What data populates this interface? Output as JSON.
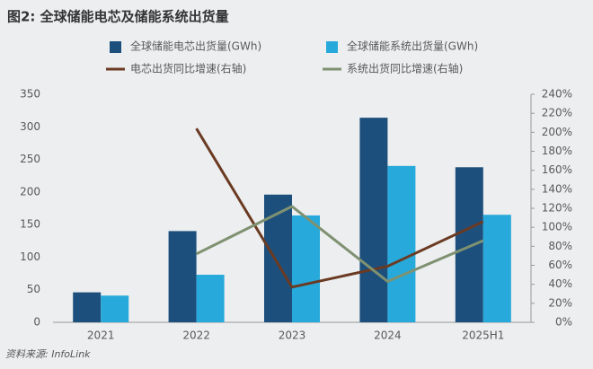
{
  "chart_data": {
    "type": "bar",
    "title": "图2: 全球储能电芯及储能系统出货量",
    "source": "资料来源: InfoLink",
    "categories": [
      "2021",
      "2022",
      "2023",
      "2024",
      "2025H1"
    ],
    "series": [
      {
        "name": "全球储能电芯出货量(GWh)",
        "type": "bar",
        "color": "#1c4f7c",
        "values": [
          46,
          140,
          196,
          314,
          238
        ]
      },
      {
        "name": "全球储能系统出货量(GWh)",
        "type": "bar",
        "color": "#27a9db",
        "values": [
          41,
          73,
          164,
          240,
          165
        ]
      },
      {
        "name": "电芯出货同比增速(右轴)",
        "type": "line",
        "axis": "y2",
        "color": "#6b3a22",
        "values": [
          null,
          204,
          37,
          59,
          106
        ]
      },
      {
        "name": "系统出货同比增速(右轴)",
        "type": "line",
        "axis": "y2",
        "color": "#7f9170",
        "values": [
          null,
          72,
          122,
          43,
          86
        ]
      }
    ],
    "ylim": [
      0,
      350
    ],
    "yticks": [
      0,
      50,
      100,
      150,
      200,
      250,
      300,
      350
    ],
    "y2lim": [
      0,
      240
    ],
    "y2ticks": [
      {
        "value": 0,
        "label": "0%"
      },
      {
        "value": 20,
        "label": "20%"
      },
      {
        "value": 40,
        "label": "40%"
      },
      {
        "value": 60,
        "label": "60%"
      },
      {
        "value": 80,
        "label": "80%"
      },
      {
        "value": 100,
        "label": "100%"
      },
      {
        "value": 120,
        "label": "120%"
      },
      {
        "value": 140,
        "label": "140%"
      },
      {
        "value": 160,
        "label": "160%"
      },
      {
        "value": 180,
        "label": "180%"
      },
      {
        "value": 200,
        "label": "200%"
      },
      {
        "value": 220,
        "label": "220%"
      },
      {
        "value": 240,
        "label": "240%"
      }
    ],
    "grid": false
  }
}
